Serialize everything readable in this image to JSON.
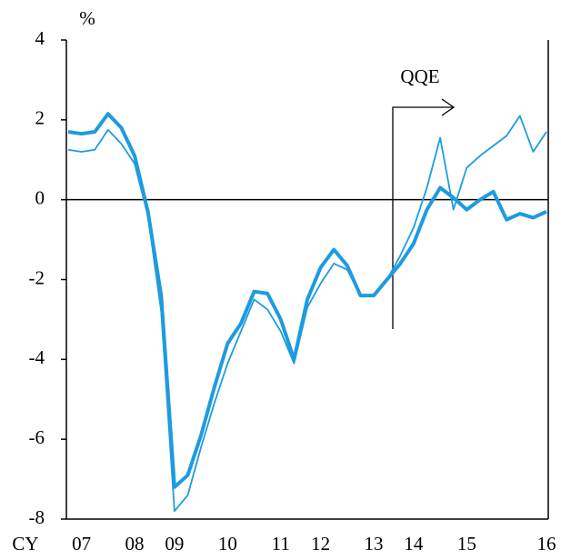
{
  "chart_data": {
    "type": "line",
    "y_label": "%",
    "x_label": "CY",
    "annotation": "QQE",
    "categories": [
      null,
      "07",
      null,
      null,
      null,
      "08",
      null,
      null,
      "09",
      null,
      null,
      null,
      "10",
      null,
      null,
      null,
      "11",
      null,
      null,
      "12",
      null,
      null,
      null,
      "13",
      null,
      null,
      "14",
      null,
      null,
      null,
      "15",
      null,
      null,
      null,
      null,
      null,
      "16"
    ],
    "series": [
      {
        "color": "#1e9be0",
        "width": 1.8,
        "values": [
          1.25,
          1.2,
          1.25,
          1.75,
          1.4,
          0.9,
          -0.4,
          -2.8,
          -7.8,
          -7.4,
          -6.2,
          -5.1,
          -4.1,
          -3.3,
          -2.5,
          -2.75,
          -3.3,
          -4.1,
          -2.7,
          -2.1,
          -1.6,
          -1.75,
          -2.4,
          -2.4,
          -2.0,
          -1.4,
          -0.7,
          0.3,
          1.55,
          -0.25,
          0.8,
          1.1,
          1.35,
          1.6,
          2.1,
          1.2,
          1.7
        ]
      },
      {
        "color": "#1e9be0",
        "width": 4,
        "values": [
          1.7,
          1.65,
          1.7,
          2.15,
          1.8,
          1.1,
          -0.3,
          -2.4,
          -7.2,
          -6.9,
          -5.9,
          -4.7,
          -3.6,
          -3.1,
          -2.3,
          -2.35,
          -3.0,
          -4.0,
          -2.5,
          -1.7,
          -1.25,
          -1.65,
          -2.4,
          -2.4,
          -2.0,
          -1.6,
          -1.1,
          -0.25,
          0.3,
          0.05,
          -0.25,
          0,
          0.2,
          -0.5,
          -0.35,
          -0.45,
          -0.3
        ]
      }
    ],
    "ylim": [
      -8,
      4
    ],
    "yticks": [
      -8,
      -6,
      -4,
      -2,
      0,
      2,
      4
    ]
  }
}
